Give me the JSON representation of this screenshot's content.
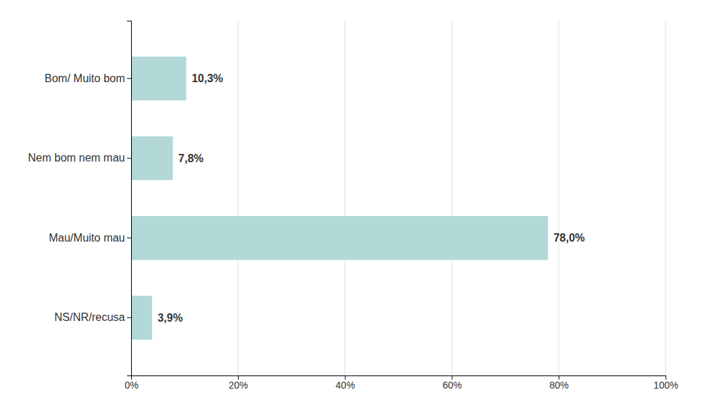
{
  "chart_data": {
    "type": "bar",
    "orientation": "horizontal",
    "categories": [
      "NS/NR/recusa",
      "Mau/Muito mau",
      "Nem bom nem mau",
      "Bom/ Muito bom"
    ],
    "values": [
      3.9,
      78.0,
      7.8,
      10.3
    ],
    "value_labels": [
      "3,9%",
      "78,0%",
      "7,8%",
      "10,3%"
    ],
    "data_labels": true,
    "color": "#b2d8d8",
    "xlim": [
      0,
      100
    ],
    "xticks": [
      {
        "value": 0,
        "label": "0%"
      },
      {
        "value": 20,
        "label": "20%"
      },
      {
        "value": 40,
        "label": "40%"
      },
      {
        "value": 60,
        "label": "60%"
      },
      {
        "value": 80,
        "label": "80%"
      },
      {
        "value": 100,
        "label": "100%"
      }
    ],
    "grid": true
  }
}
